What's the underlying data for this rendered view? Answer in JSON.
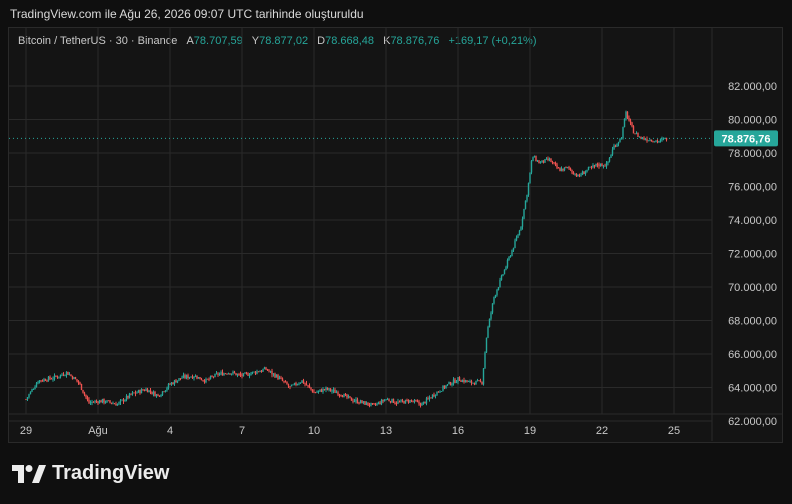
{
  "caption": "TradingView.com ile Ağu 26, 2026 09:07 UTC tarihinde oluşturuldu",
  "legend": {
    "symbol": "Bitcoin / TetherUS · 30 · Binance",
    "o_label": "A",
    "o_value": "78.707,59",
    "h_label": "Y",
    "h_value": "78.877,02",
    "l_label": "D",
    "l_value": "78.668,48",
    "c_label": "K",
    "c_value": "78.876,76",
    "change": "+169,17 (+0,21%)"
  },
  "brand": "TradingView",
  "colors": {
    "up": "#26a69a",
    "down": "#ef5350",
    "grid": "#2a2a2a",
    "text": "#c8c8c8"
  },
  "chart_data": {
    "type": "candlestick",
    "symbol": "Bitcoin / TetherUS",
    "interval": "30",
    "exchange": "Binance",
    "last_price": 78876.76,
    "last_price_label": "78.876,76",
    "ylim": [
      61500,
      83500
    ],
    "y_ticks": [
      62000,
      64000,
      66000,
      68000,
      70000,
      72000,
      74000,
      76000,
      78000,
      80000,
      82000
    ],
    "y_tick_labels": [
      "62.000,00",
      "64.000,00",
      "66.000,00",
      "68.000,00",
      "70.000,00",
      "72.000,00",
      "74.000,00",
      "76.000,00",
      "78.000,00",
      "80.000,00",
      "82.000,00"
    ],
    "x_ticks": [
      0,
      3,
      6,
      9,
      12,
      15,
      18,
      21,
      24,
      27
    ],
    "x_tick_labels": [
      "29",
      "Ağu",
      "4",
      "7",
      "10",
      "13",
      "16",
      "19",
      "22",
      "25"
    ],
    "x_range": [
      -0.3,
      28.3
    ],
    "close_path": [
      [
        0,
        63300
      ],
      [
        0.5,
        64400
      ],
      [
        1.2,
        64600
      ],
      [
        1.7,
        64900
      ],
      [
        2.2,
        64300
      ],
      [
        2.6,
        63100
      ],
      [
        3.2,
        63200
      ],
      [
        3.8,
        63000
      ],
      [
        4.4,
        63600
      ],
      [
        5.0,
        63900
      ],
      [
        5.5,
        63500
      ],
      [
        6.0,
        64200
      ],
      [
        6.5,
        64600
      ],
      [
        7.0,
        64700
      ],
      [
        7.5,
        64400
      ],
      [
        8.0,
        64800
      ],
      [
        8.5,
        64900
      ],
      [
        9.0,
        64700
      ],
      [
        9.5,
        64900
      ],
      [
        10.0,
        65100
      ],
      [
        10.5,
        64600
      ],
      [
        11.0,
        64000
      ],
      [
        11.5,
        64400
      ],
      [
        12.0,
        63700
      ],
      [
        12.5,
        63900
      ],
      [
        13.0,
        63700
      ],
      [
        13.5,
        63300
      ],
      [
        14.0,
        63100
      ],
      [
        14.5,
        62900
      ],
      [
        15.0,
        63300
      ],
      [
        15.5,
        63100
      ],
      [
        16.0,
        63200
      ],
      [
        16.5,
        63000
      ],
      [
        17.0,
        63600
      ],
      [
        17.5,
        64100
      ],
      [
        18.0,
        64500
      ],
      [
        18.5,
        64300
      ],
      [
        19.0,
        64300
      ],
      [
        19.2,
        67200
      ],
      [
        19.5,
        69400
      ],
      [
        19.8,
        70500
      ],
      [
        20.2,
        72000
      ],
      [
        20.6,
        73500
      ],
      [
        20.9,
        75800
      ],
      [
        21.1,
        77800
      ],
      [
        21.4,
        77400
      ],
      [
        21.8,
        77600
      ],
      [
        22.2,
        77000
      ],
      [
        22.6,
        77100
      ],
      [
        23.0,
        76600
      ],
      [
        23.4,
        77000
      ],
      [
        23.8,
        77300
      ],
      [
        24.2,
        77300
      ],
      [
        24.5,
        78400
      ],
      [
        24.8,
        78900
      ],
      [
        25.0,
        80400
      ],
      [
        25.3,
        79300
      ],
      [
        25.6,
        78900
      ],
      [
        26.0,
        78800
      ],
      [
        26.4,
        78700
      ],
      [
        26.7,
        78877
      ]
    ]
  }
}
